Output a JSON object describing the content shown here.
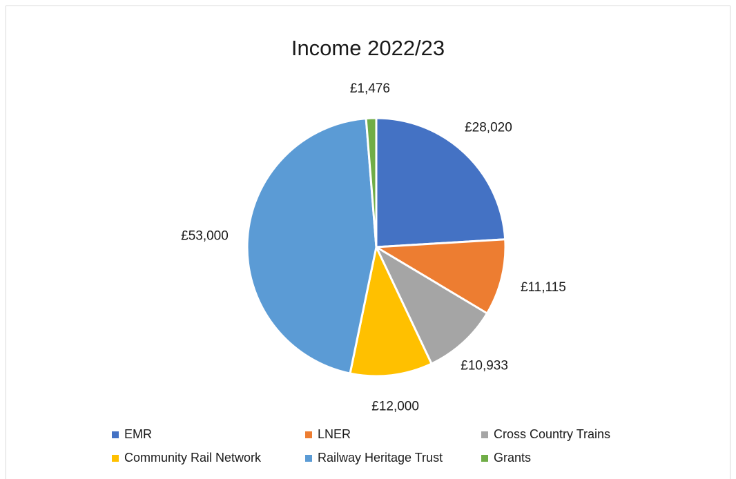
{
  "chart_data": {
    "type": "pie",
    "title": "Income 2022/23",
    "categories": [
      "EMR",
      "LNER",
      "Cross Country Trains",
      "Community Rail Network",
      "Railway Heritage Trust",
      "Grants"
    ],
    "values": [
      28020,
      11115,
      10933,
      12000,
      53000,
      1476
    ],
    "data_labels": [
      "£28,020",
      "£11,115",
      "£10,933",
      "£12,000",
      "£53,000",
      "£1,476"
    ],
    "colors": [
      "#4472C4",
      "#ED7D31",
      "#A5A5A5",
      "#FFC000",
      "#5B9BD5",
      "#70AD47"
    ],
    "legend_position": "bottom",
    "start_angle": "12 o'clock",
    "direction": "clockwise"
  }
}
